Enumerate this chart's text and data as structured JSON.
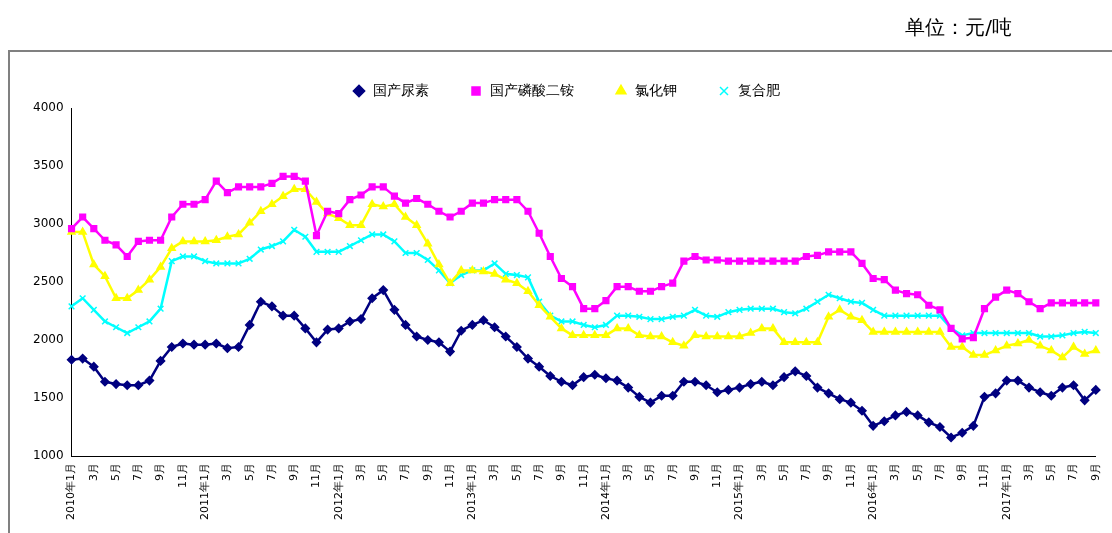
{
  "chart_data": {
    "type": "line",
    "annotations": [
      "单位：元/吨"
    ],
    "categories": [
      "2010年1月",
      null,
      "3月",
      null,
      "5月",
      null,
      "7月",
      null,
      "9月",
      null,
      "11月",
      null,
      "2011年1月",
      null,
      "3月",
      null,
      "5月",
      null,
      "7月",
      null,
      "9月",
      null,
      "11月",
      null,
      "2012年1月",
      null,
      "3月",
      null,
      "5月",
      null,
      "7月",
      null,
      "9月",
      null,
      "11月",
      null,
      "2013年1月",
      null,
      "3月",
      null,
      "5月",
      null,
      "7月",
      null,
      "9月",
      null,
      "11月",
      null,
      "2014年1月",
      null,
      "3月",
      null,
      "5月",
      null,
      "7月",
      null,
      "9月",
      null,
      "11月",
      null,
      "2015年1月",
      null,
      "3月",
      null,
      "5月",
      null,
      "7月",
      null,
      "9月",
      null,
      "11月",
      null,
      "2016年1月",
      null,
      "3月",
      null,
      "5月",
      null,
      "7月",
      null,
      "9月",
      null,
      "11月",
      null,
      "2017年1月",
      null,
      "3月",
      null,
      "5月",
      null,
      "7月",
      null,
      "9月"
    ],
    "series": [
      {
        "name": "国产尿素",
        "color": "#000080",
        "marker": "diamond",
        "values": [
          1830,
          1840,
          1770,
          1640,
          1620,
          1610,
          1610,
          1650,
          1820,
          1940,
          1970,
          1960,
          1960,
          1970,
          1930,
          1940,
          2130,
          2330,
          2290,
          2210,
          2210,
          2100,
          1980,
          2090,
          2100,
          2160,
          2180,
          2360,
          2430,
          2260,
          2130,
          2030,
          2000,
          1980,
          1900,
          2080,
          2130,
          2170,
          2110,
          2030,
          1940,
          1840,
          1770,
          1690,
          1640,
          1610,
          1680,
          1700,
          1670,
          1650,
          1590,
          1510,
          1460,
          1520,
          1520,
          1640,
          1640,
          1610,
          1550,
          1570,
          1590,
          1620,
          1640,
          1610,
          1680,
          1730,
          1690,
          1590,
          1540,
          1490,
          1460,
          1390,
          1260,
          1300,
          1350,
          1380,
          1350,
          1290,
          1250,
          1160,
          1200,
          1260,
          1510,
          1540,
          1650,
          1650,
          1590,
          1550,
          1520,
          1590,
          1610,
          1480,
          1570
        ]
      },
      {
        "name": "国产磷酸二铵",
        "color": "#ff00ff",
        "marker": "square",
        "values": [
          2960,
          3060,
          2960,
          2860,
          2820,
          2720,
          2850,
          2860,
          2860,
          3060,
          3170,
          3170,
          3210,
          3370,
          3270,
          3320,
          3320,
          3320,
          3350,
          3410,
          3410,
          3370,
          2900,
          3110,
          3090,
          3210,
          3250,
          3320,
          3320,
          3240,
          3180,
          3220,
          3170,
          3110,
          3060,
          3110,
          3180,
          3180,
          3210,
          3210,
          3210,
          3110,
          2920,
          2720,
          2530,
          2460,
          2270,
          2270,
          2340,
          2460,
          2460,
          2420,
          2420,
          2460,
          2490,
          2680,
          2720,
          2690,
          2690,
          2680,
          2680,
          2680,
          2680,
          2680,
          2680,
          2680,
          2720,
          2730,
          2760,
          2760,
          2760,
          2660,
          2530,
          2520,
          2430,
          2400,
          2390,
          2300,
          2260,
          2100,
          2010,
          2020,
          2270,
          2370,
          2430,
          2400,
          2330,
          2270,
          2320,
          2320,
          2320,
          2320,
          2320
        ]
      },
      {
        "name": "氯化钾",
        "color": "#ffff00",
        "marker": "triangle",
        "values": [
          2930,
          2930,
          2650,
          2550,
          2360,
          2360,
          2430,
          2520,
          2630,
          2790,
          2850,
          2850,
          2850,
          2860,
          2890,
          2910,
          3010,
          3110,
          3170,
          3240,
          3300,
          3300,
          3190,
          3090,
          3050,
          2990,
          2990,
          3170,
          3150,
          3170,
          3060,
          2990,
          2830,
          2650,
          2490,
          2600,
          2600,
          2590,
          2570,
          2520,
          2490,
          2420,
          2300,
          2200,
          2100,
          2040,
          2040,
          2040,
          2040,
          2100,
          2100,
          2040,
          2030,
          2030,
          1980,
          1950,
          2040,
          2030,
          2030,
          2030,
          2030,
          2060,
          2100,
          2100,
          1980,
          1980,
          1980,
          1980,
          2200,
          2260,
          2200,
          2170,
          2070,
          2070,
          2070,
          2070,
          2070,
          2070,
          2070,
          1940,
          1940,
          1870,
          1870,
          1910,
          1950,
          1970,
          2000,
          1950,
          1910,
          1850,
          1940,
          1880,
          1910
        ]
      },
      {
        "name": "复合肥",
        "color": "#00ffff",
        "marker": "cross",
        "values": [
          2290,
          2360,
          2260,
          2160,
          2110,
          2060,
          2110,
          2160,
          2270,
          2680,
          2720,
          2720,
          2680,
          2660,
          2660,
          2660,
          2700,
          2780,
          2810,
          2850,
          2950,
          2890,
          2760,
          2760,
          2760,
          2810,
          2860,
          2910,
          2910,
          2850,
          2750,
          2750,
          2690,
          2600,
          2490,
          2560,
          2600,
          2600,
          2660,
          2570,
          2560,
          2540,
          2330,
          2210,
          2160,
          2160,
          2130,
          2110,
          2130,
          2210,
          2210,
          2200,
          2180,
          2180,
          2200,
          2210,
          2260,
          2210,
          2200,
          2240,
          2260,
          2270,
          2270,
          2270,
          2240,
          2230,
          2270,
          2330,
          2390,
          2360,
          2330,
          2320,
          2260,
          2210,
          2210,
          2210,
          2210,
          2210,
          2210,
          2100,
          2040,
          2060,
          2060,
          2060,
          2060,
          2060,
          2060,
          2030,
          2030,
          2040,
          2060,
          2070,
          2060
        ]
      }
    ],
    "ylim": [
      1000,
      4000
    ],
    "yticks": [
      1000,
      1500,
      2000,
      2500,
      3000,
      3500,
      4000
    ],
    "grid": false,
    "legend": "top"
  }
}
